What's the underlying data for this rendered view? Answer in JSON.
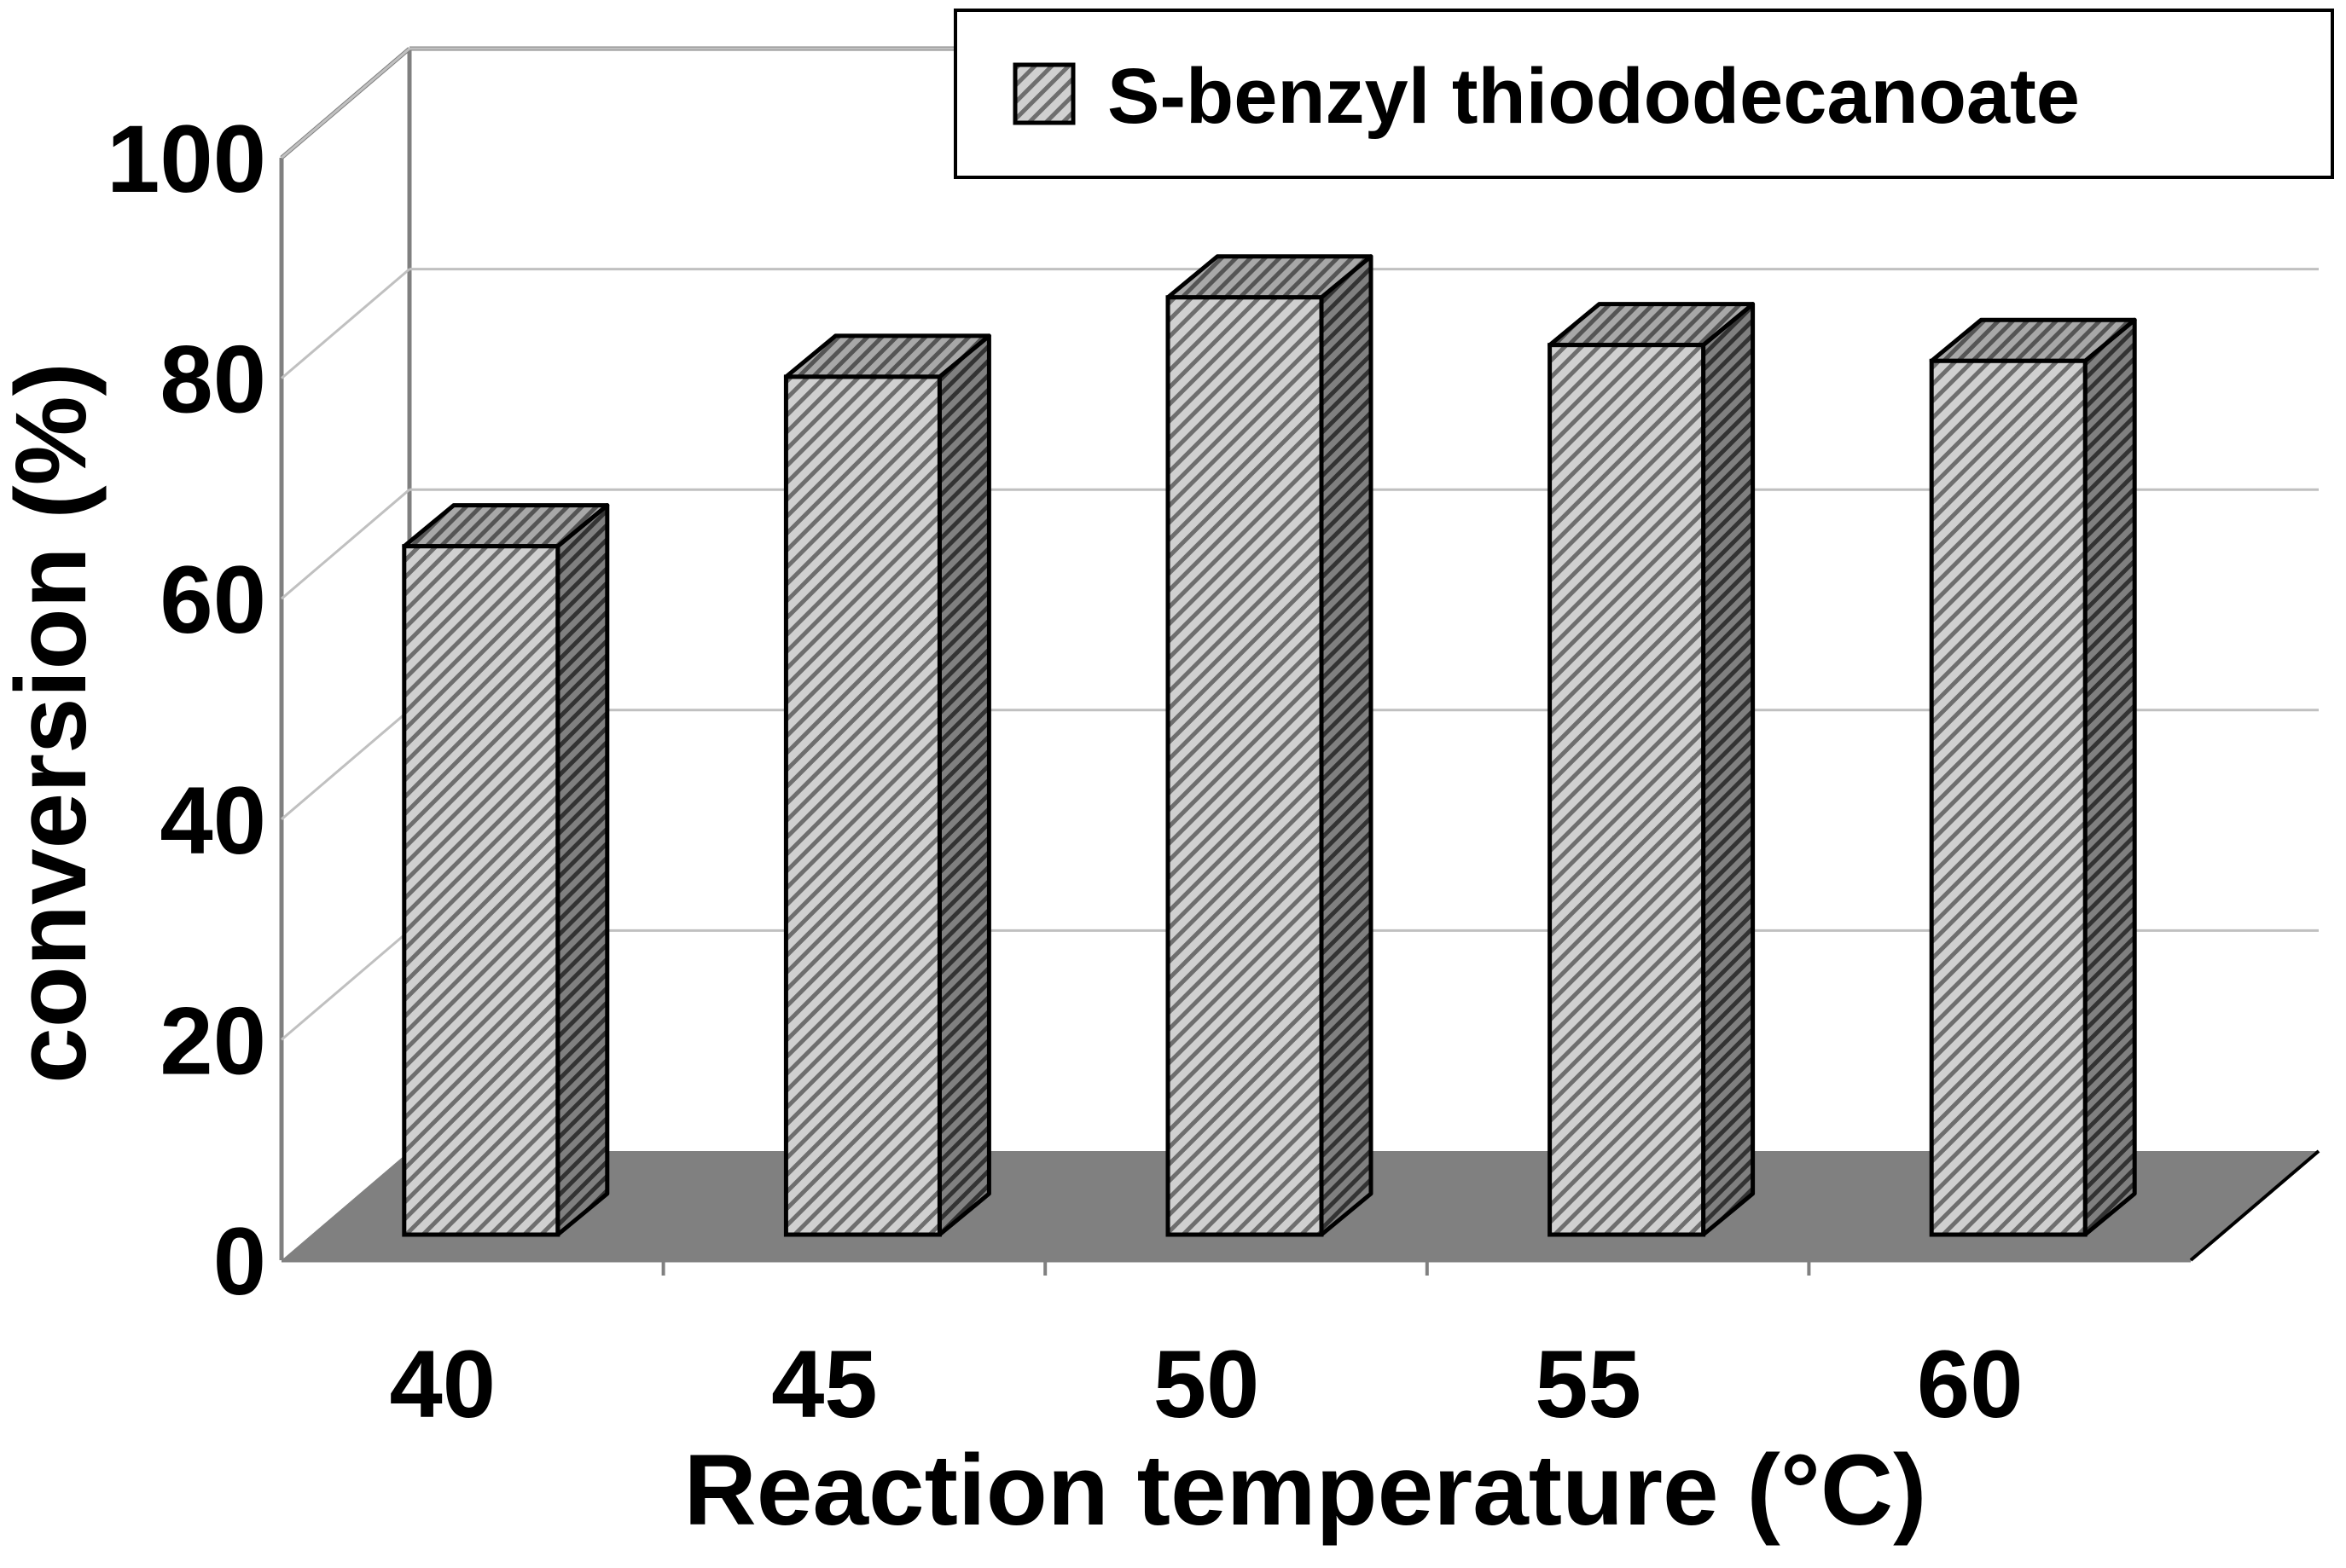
{
  "chart_data": {
    "type": "bar",
    "style": "3d-column",
    "categories": [
      "40",
      "45",
      "50",
      "55",
      "60"
    ],
    "series": [
      {
        "name": "S-benzyl thiododecanoate",
        "values": [
          65,
          81,
          88.5,
          84,
          82.5
        ]
      }
    ],
    "title": "",
    "xlabel": "Reaction temperature (°C)",
    "ylabel": "conversion (%)",
    "ylim": [
      0,
      100
    ],
    "yticks": [
      "0",
      "20",
      "40",
      "60",
      "80",
      "100"
    ],
    "grid": true,
    "legend_position": "top-right"
  },
  "colors": {
    "background": "#ffffff",
    "floor": "#808080",
    "gridline": "#c0c0c0",
    "wall_edge": "#808080",
    "bar_front_base": "#d0d0d0",
    "bar_front_stripe": "#6e6e6e",
    "bar_side_base": "#808080",
    "bar_side_stripe": "#333333",
    "bar_top_base": "#a8a8a8",
    "bar_top_stripe": "#555555",
    "outline": "#000000"
  }
}
